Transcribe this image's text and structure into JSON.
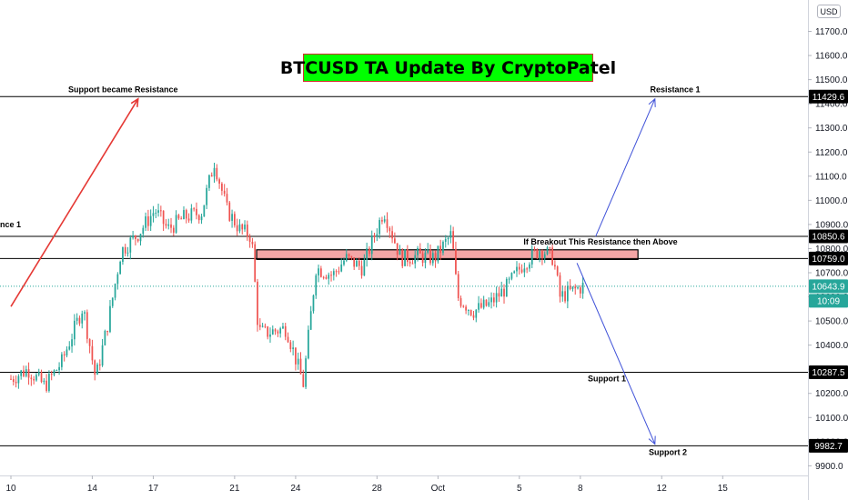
{
  "chart_data": {
    "type": "candlestick",
    "title": "BTCUSD TA Update By CryptoPatel",
    "currency_badge": "USD",
    "y_axis": {
      "ylim": [
        9860,
        11830
      ],
      "ticks": [
        11700,
        11600,
        11500,
        11400,
        11300,
        11200,
        11100,
        11000,
        10900,
        10800,
        10700,
        10600,
        10500,
        10400,
        10300,
        10200,
        10100,
        10000,
        9900
      ],
      "tick_labels": [
        "11700.0",
        "11600.0",
        "11500.0",
        "11400.0",
        "11300.0",
        "11200.0",
        "11100.0",
        "11000.0",
        "10900.0",
        "10800.0",
        "10700.0",
        "10600.0",
        "10500.0",
        "10400.0",
        "10300.0",
        "10200.0",
        "10100.0",
        "10000.0",
        "9900.0"
      ]
    },
    "x_axis": {
      "ticks": [
        {
          "label": "10",
          "bar": 0
        },
        {
          "label": "14",
          "bar": 96
        },
        {
          "label": "17",
          "bar": 168
        },
        {
          "label": "21",
          "bar": 264
        },
        {
          "label": "24",
          "bar": 336
        },
        {
          "label": "28",
          "bar": 432
        },
        {
          "label": "Oct",
          "bar": 504
        },
        {
          "label": "5",
          "bar": 600
        },
        {
          "label": "8",
          "bar": 672
        },
        {
          "label": "12",
          "bar": 768
        },
        {
          "label": "15",
          "bar": 840
        }
      ]
    },
    "price_levels": [
      {
        "value": 11429.6,
        "label": "11429.6",
        "annotation": "Support became Resistance",
        "annotation2": "Resistance 1"
      },
      {
        "value": 10850.6,
        "label": "10850.6",
        "annotation": "If Breakout This Resistance then  Above",
        "left_fragment": "nce 1"
      },
      {
        "value": 10759.0,
        "label": "10759.0"
      },
      {
        "value": 10287.5,
        "label": "10287.5",
        "annotation": "Support 1"
      },
      {
        "value": 9982.7,
        "label": "9982.7",
        "annotation": "Support 2"
      }
    ],
    "resistance_zone": {
      "low": 10755,
      "high": 10795,
      "start_bar": 290,
      "end_bar": 740
    },
    "current_price": {
      "value": 10643.9,
      "label": "10643.9",
      "countdown": "10:09"
    },
    "projections": [
      {
        "from": {
          "bar": 0,
          "value": 10560
        },
        "to": {
          "bar": 150,
          "value": 11420
        },
        "color": "#e53935"
      },
      {
        "from": {
          "bar": 690,
          "value": 10850
        },
        "to": {
          "bar": 760,
          "value": 11420
        },
        "color": "#3f51d8"
      },
      {
        "from": {
          "bar": 668,
          "value": 10740
        },
        "to": {
          "bar": 760,
          "value": 9990
        },
        "color": "#3f51d8"
      }
    ],
    "candles": {
      "interval_hours": 1,
      "bar_count": 676,
      "close_anchors": [
        [
          0,
          10260
        ],
        [
          20,
          10300
        ],
        [
          40,
          10230
        ],
        [
          60,
          10330
        ],
        [
          85,
          10560
        ],
        [
          100,
          10260
        ],
        [
          115,
          10500
        ],
        [
          130,
          10790
        ],
        [
          150,
          10860
        ],
        [
          170,
          10960
        ],
        [
          185,
          10880
        ],
        [
          205,
          10930
        ],
        [
          225,
          10950
        ],
        [
          240,
          11160
        ],
        [
          255,
          10960
        ],
        [
          270,
          10880
        ],
        [
          284,
          10850
        ],
        [
          292,
          10460
        ],
        [
          300,
          10450
        ],
        [
          325,
          10470
        ],
        [
          345,
          10240
        ],
        [
          360,
          10720
        ],
        [
          380,
          10690
        ],
        [
          395,
          10760
        ],
        [
          415,
          10720
        ],
        [
          440,
          10960
        ],
        [
          460,
          10760
        ],
        [
          480,
          10770
        ],
        [
          500,
          10760
        ],
        [
          520,
          10860
        ],
        [
          527,
          10600
        ],
        [
          545,
          10540
        ],
        [
          565,
          10570
        ],
        [
          585,
          10640
        ],
        [
          605,
          10740
        ],
        [
          625,
          10800
        ],
        [
          640,
          10760
        ],
        [
          648,
          10600
        ],
        [
          660,
          10620
        ],
        [
          675,
          10643.9
        ]
      ]
    }
  }
}
